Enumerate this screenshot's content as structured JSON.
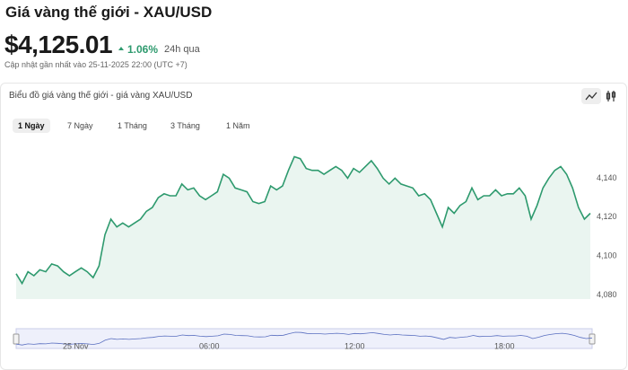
{
  "header": {
    "title": "Giá vàng thế giới - XAU/USD",
    "price": "$4,125.01",
    "change": "1.06%",
    "change_period": "24h qua",
    "updated": "Cập nhật gần nhất vào 25-11-2025 22:00 (UTC +7)"
  },
  "panel": {
    "title": "Biểu đồ giá vàng thế giới - giá vàng XAU/USD",
    "tabs": [
      "1 Ngày",
      "7 Ngày",
      "1 Tháng",
      "3 Tháng",
      "1 Năm"
    ],
    "active_tab": 0
  },
  "chart_data": {
    "type": "area",
    "color": "#2e9a6e",
    "values": [
      4091,
      4086,
      4092,
      4090,
      4093,
      4092,
      4096,
      4095,
      4092,
      4090,
      4092,
      4094,
      4092,
      4089,
      4095,
      4111,
      4119,
      4115,
      4117,
      4115,
      4117,
      4119,
      4123,
      4125,
      4130,
      4132,
      4131,
      4131,
      4137,
      4134,
      4135,
      4131,
      4129,
      4131,
      4133,
      4142,
      4140,
      4135,
      4134,
      4133,
      4128,
      4127,
      4128,
      4136,
      4134,
      4136,
      4144,
      4151,
      4150,
      4145,
      4144,
      4144,
      4142,
      4144,
      4146,
      4144,
      4140,
      4145,
      4143,
      4146,
      4149,
      4145,
      4140,
      4137,
      4140,
      4137,
      4136,
      4135,
      4131,
      4132,
      4129,
      4122,
      4115,
      4125,
      4122,
      4126,
      4128,
      4135,
      4129,
      4131,
      4131,
      4134,
      4131,
      4132,
      4132,
      4135,
      4131,
      4119,
      4126,
      4135,
      4140,
      4144,
      4146,
      4142,
      4135,
      4125,
      4119,
      4122
    ],
    "ylim": [
      4078,
      4160
    ],
    "yticks": [
      {
        "value": 4080,
        "label": "4,080"
      },
      {
        "value": 4100,
        "label": "4,100"
      },
      {
        "value": 4120,
        "label": "4,120"
      },
      {
        "value": 4140,
        "label": "4,140"
      }
    ],
    "navigator_labels": [
      "25 Nov",
      "06:00",
      "12:00",
      "18:00"
    ]
  }
}
